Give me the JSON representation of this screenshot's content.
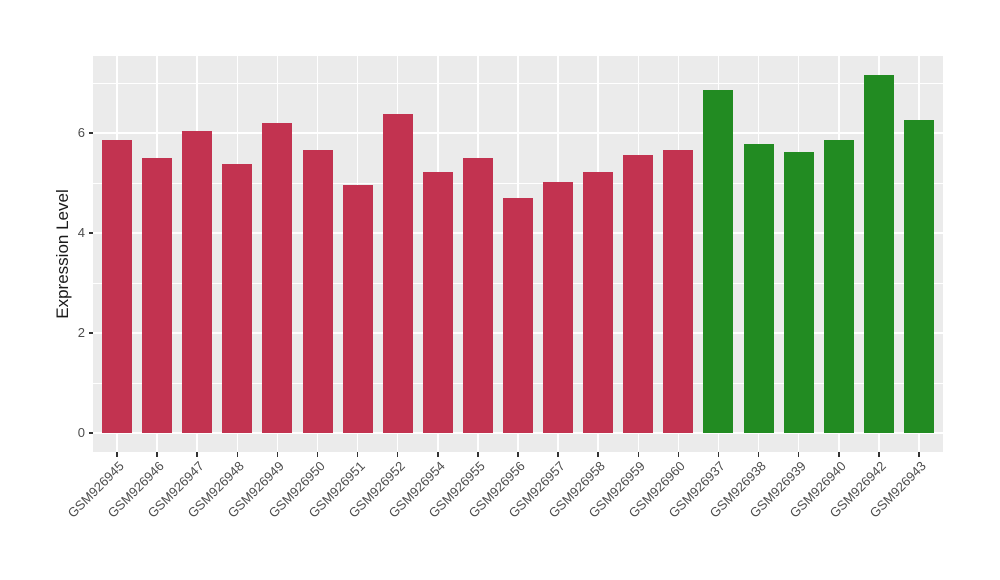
{
  "chart_data": {
    "type": "bar",
    "title": "",
    "xlabel": "",
    "ylabel": "Expression Level",
    "categories": [
      "GSM926945",
      "GSM926946",
      "GSM926947",
      "GSM926948",
      "GSM926949",
      "GSM926950",
      "GSM926951",
      "GSM926952",
      "GSM926954",
      "GSM926955",
      "GSM926956",
      "GSM926957",
      "GSM926958",
      "GSM926959",
      "GSM926960",
      "GSM926937",
      "GSM926938",
      "GSM926939",
      "GSM926940",
      "GSM926942",
      "GSM926943"
    ],
    "values": [
      5.86,
      5.5,
      6.04,
      5.38,
      6.2,
      5.66,
      4.96,
      6.38,
      5.22,
      5.5,
      4.7,
      5.02,
      5.22,
      5.56,
      5.66,
      6.86,
      5.78,
      5.62,
      5.86,
      7.16,
      6.26
    ],
    "bar_groups": [
      "red",
      "red",
      "red",
      "red",
      "red",
      "red",
      "red",
      "red",
      "red",
      "red",
      "red",
      "red",
      "red",
      "red",
      "red",
      "green",
      "green",
      "green",
      "green",
      "green",
      "green"
    ],
    "group_colors": {
      "red": "#c23350",
      "green": "#228b22"
    },
    "yticks": [
      0,
      2,
      4,
      6
    ],
    "minor_yticks": [
      1,
      3,
      5,
      7
    ],
    "ylim": [
      -0.38,
      7.54
    ],
    "grid": true,
    "legend_position": "none",
    "panel_background": "#ebebeb",
    "grid_color": "#ffffff",
    "axis_text_color": "#4d4d4d",
    "axis_title_color": "#1a1a1a"
  }
}
